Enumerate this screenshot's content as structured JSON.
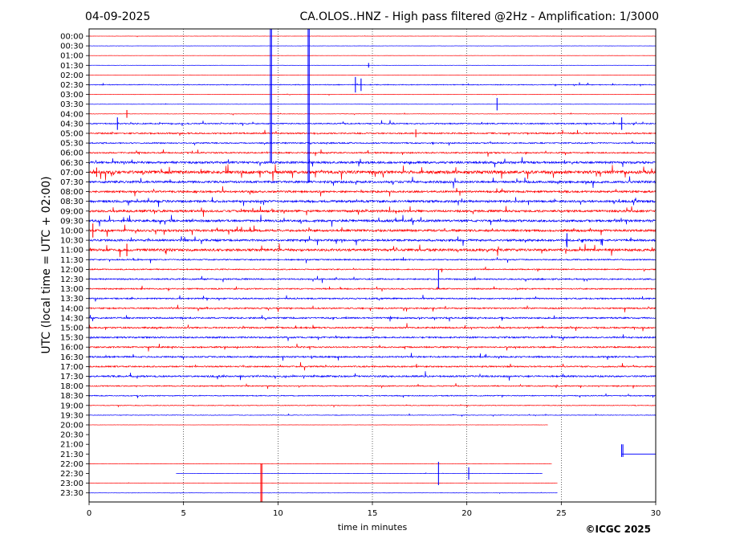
{
  "header": {
    "date": "04-09-2025",
    "title": "CA.OLOS..HNZ - High pass filtered @2Hz - Amplification: 1/3000"
  },
  "footer": {
    "copyright": "©ICGC 2025"
  },
  "colors": {
    "red_trace": "#ff0000",
    "blue_trace": "#0000ff",
    "axis": "#000000",
    "grid": "#000000"
  },
  "chart_data": {
    "type": "line",
    "title": "CA.OLOS..HNZ - High pass filtered @2Hz - Amplification: 1/3000",
    "xlabel": "time in minutes",
    "ylabel": "UTC (local time = UTC + 02:00)",
    "xlim": [
      0,
      30
    ],
    "x_ticks": [
      0,
      5,
      10,
      15,
      20,
      25,
      30
    ],
    "grid": "vertical dotted at x ticks",
    "row_labels": [
      "00:00",
      "00:30",
      "01:00",
      "01:30",
      "02:00",
      "02:30",
      "03:00",
      "03:30",
      "04:00",
      "04:30",
      "05:00",
      "05:30",
      "06:00",
      "06:30",
      "07:00",
      "07:30",
      "08:00",
      "08:30",
      "09:00",
      "09:30",
      "10:00",
      "10:30",
      "11:00",
      "11:30",
      "12:00",
      "12:30",
      "13:00",
      "13:30",
      "14:00",
      "14:30",
      "15:00",
      "15:30",
      "16:00",
      "16:30",
      "17:00",
      "17:30",
      "18:00",
      "18:30",
      "19:00",
      "19:30",
      "20:00",
      "20:30",
      "21:00",
      "21:30",
      "22:00",
      "22:30",
      "23:00",
      "23:30"
    ],
    "row_colors": [
      "red",
      "blue",
      "red",
      "blue",
      "red",
      "blue",
      "red",
      "blue",
      "red",
      "blue",
      "red",
      "blue",
      "red",
      "blue",
      "red",
      "blue",
      "red",
      "blue",
      "red",
      "blue",
      "red",
      "blue",
      "red",
      "blue",
      "red",
      "blue",
      "red",
      "blue",
      "red",
      "blue",
      "red",
      "blue",
      "red",
      "blue",
      "red",
      "blue",
      "red",
      "blue",
      "red",
      "blue",
      "red",
      "blue",
      "red",
      "blue",
      "red",
      "blue",
      "red",
      "blue"
    ],
    "row_noise_level": [
      0.15,
      0.2,
      0.1,
      0.15,
      0.15,
      0.6,
      0.2,
      0.25,
      0.3,
      0.9,
      1.0,
      0.9,
      1.0,
      1.6,
      2.2,
      1.6,
      1.4,
      1.6,
      1.6,
      1.6,
      1.6,
      1.5,
      1.8,
      0.9,
      0.8,
      1.0,
      0.9,
      1.0,
      1.0,
      1.1,
      1.1,
      1.1,
      1.0,
      1.1,
      1.0,
      1.2,
      0.8,
      0.7,
      0.5,
      0.4,
      0.15,
      0,
      0,
      0,
      0.2,
      0.2,
      0.2,
      0.2
    ],
    "row_trace_extent_min": [
      [
        0,
        30
      ],
      [
        0,
        30
      ],
      [
        0,
        30
      ],
      [
        0,
        30
      ],
      [
        0,
        30
      ],
      [
        0,
        30
      ],
      [
        0,
        30
      ],
      [
        0,
        30
      ],
      [
        0,
        30
      ],
      [
        0,
        30
      ],
      [
        0,
        30
      ],
      [
        0,
        30
      ],
      [
        0,
        30
      ],
      [
        0,
        30
      ],
      [
        0,
        30
      ],
      [
        0,
        30
      ],
      [
        0,
        30
      ],
      [
        0,
        30
      ],
      [
        0,
        30
      ],
      [
        0,
        30
      ],
      [
        0,
        30
      ],
      [
        0,
        30
      ],
      [
        0,
        30
      ],
      [
        0,
        30
      ],
      [
        0,
        30
      ],
      [
        0,
        30
      ],
      [
        0,
        30
      ],
      [
        0,
        30
      ],
      [
        0,
        30
      ],
      [
        0,
        30
      ],
      [
        0,
        30
      ],
      [
        0,
        30
      ],
      [
        0,
        30
      ],
      [
        0,
        30
      ],
      [
        0,
        30
      ],
      [
        0,
        30
      ],
      [
        0,
        30
      ],
      [
        0,
        30
      ],
      [
        0,
        30
      ],
      [
        0,
        30
      ],
      [
        0,
        24.3
      ],
      null,
      null,
      [
        28.2,
        30
      ],
      [
        0,
        24.5
      ],
      [
        4.6,
        24.0
      ],
      [
        0,
        24.8
      ],
      [
        0,
        24.8
      ]
    ],
    "spikes": [
      {
        "row": 3,
        "min": 14.8,
        "amp": 0.3
      },
      {
        "row": 5,
        "min": 14.1,
        "amp": 1.0
      },
      {
        "row": 5,
        "min": 14.4,
        "amp": 0.8
      },
      {
        "row": 7,
        "min": 21.6,
        "amp": 0.8
      },
      {
        "row": 8,
        "min": 2.0,
        "amp": 0.5
      },
      {
        "row": 9,
        "min": 1.5,
        "amp": 0.8
      },
      {
        "row": 9,
        "min": 28.2,
        "amp": 0.8
      },
      {
        "row": 10,
        "min": 17.3,
        "amp": 0.5
      },
      {
        "row": 14,
        "min": 0.4,
        "amp": 0.6
      },
      {
        "row": 20,
        "min": 0.2,
        "amp": 0.9
      },
      {
        "row": 21,
        "min": 25.3,
        "amp": 0.9
      },
      {
        "row": 22,
        "min": 2.0,
        "amp": 0.8
      },
      {
        "row": 25,
        "min": 18.5,
        "amp": 1.2
      },
      {
        "row": 45,
        "min": 18.5,
        "amp": 1.5
      },
      {
        "row": 45,
        "min": 20.1,
        "amp": 0.8
      }
    ],
    "long_vertical_events": [
      {
        "min": 9.6,
        "from_row": -1,
        "to_row": 13,
        "color": "blue"
      },
      {
        "min": 11.6,
        "from_row": -1,
        "to_row": 15,
        "color": "blue"
      },
      {
        "min": 9.1,
        "from_row": 44,
        "to_row": 48,
        "color": "red"
      },
      {
        "min": 28.2,
        "from_row": 42,
        "to_row": 43.3,
        "color": "blue"
      }
    ]
  }
}
